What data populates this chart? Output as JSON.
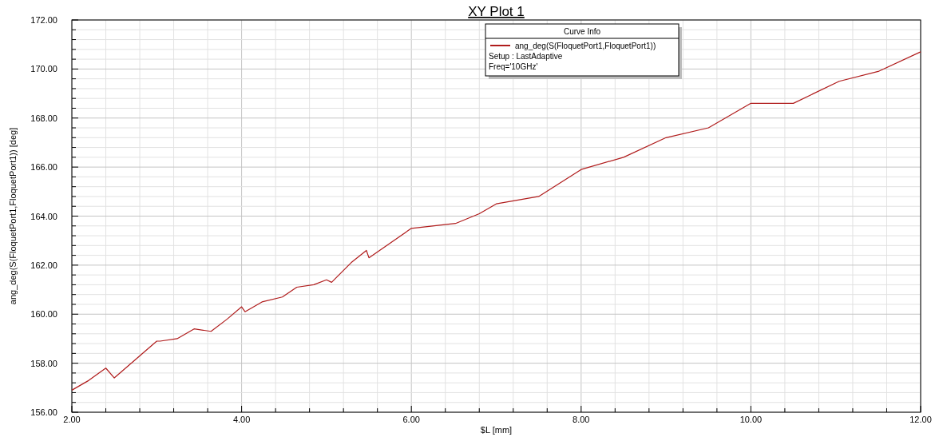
{
  "chart_data": {
    "type": "line",
    "title": "XY Plot 1",
    "xlabel": "$L [mm]",
    "ylabel": "ang_deg(S(FloquetPort1,FloquetPort1)) [deg]",
    "legend_title": "Curve Info",
    "annotations": [
      "Setup : LastAdaptive",
      "Freq='10GHz'"
    ],
    "x": [
      2,
      2.2,
      2.4,
      2.5,
      3.0,
      3.04,
      3.24,
      3.44,
      3.64,
      3.83,
      4.0,
      4.04,
      4.24,
      4.48,
      4.65,
      4.85,
      5.0,
      5.06,
      5.29,
      5.47,
      5.5,
      6.0,
      6.52,
      6.8,
      7.0,
      7.5,
      8.0,
      8.5,
      9.0,
      9.5,
      10.0,
      10.5,
      11.04,
      11.5,
      12
    ],
    "series": [
      {
        "name": "ang_deg(S(FloquetPort1,FloquetPort1))",
        "color": "#b01c1c",
        "values": [
          156.9,
          157.3,
          157.8,
          157.4,
          158.9,
          158.9,
          159.0,
          159.4,
          159.3,
          159.8,
          160.3,
          160.1,
          160.5,
          160.7,
          161.1,
          161.2,
          161.4,
          161.3,
          162.1,
          162.6,
          162.3,
          163.5,
          163.7,
          164.1,
          164.5,
          164.8,
          165.9,
          166.4,
          167.2,
          167.6,
          168.6,
          168.6,
          169.5,
          169.9,
          170.7
        ]
      }
    ],
    "xlim": [
      2,
      12
    ],
    "ylim": [
      156,
      172
    ],
    "xticks": [
      {
        "value": 2,
        "label": "2.00"
      },
      {
        "value": 2.4,
        "label": null
      },
      {
        "value": 2.8,
        "label": null
      },
      {
        "value": 3.2,
        "label": null
      },
      {
        "value": 3.6,
        "label": null
      },
      {
        "value": 4,
        "label": "4.00"
      },
      {
        "value": 4.4,
        "label": null
      },
      {
        "value": 4.8,
        "label": null
      },
      {
        "value": 5.2,
        "label": null
      },
      {
        "value": 5.6,
        "label": null
      },
      {
        "value": 6,
        "label": "6.00"
      },
      {
        "value": 6.4,
        "label": null
      },
      {
        "value": 6.8,
        "label": null
      },
      {
        "value": 7.2,
        "label": null
      },
      {
        "value": 7.6,
        "label": null
      },
      {
        "value": 8,
        "label": "8.00"
      },
      {
        "value": 8.4,
        "label": null
      },
      {
        "value": 8.8,
        "label": null
      },
      {
        "value": 9.2,
        "label": null
      },
      {
        "value": 9.6,
        "label": null
      },
      {
        "value": 10,
        "label": "10.00"
      },
      {
        "value": 10.4,
        "label": null
      },
      {
        "value": 10.8,
        "label": null
      },
      {
        "value": 11.2,
        "label": null
      },
      {
        "value": 11.6,
        "label": null
      },
      {
        "value": 12,
        "label": "12.00"
      }
    ],
    "yticks": [
      {
        "value": 156,
        "label": "156.00"
      },
      {
        "value": 156.4,
        "label": null
      },
      {
        "value": 156.8,
        "label": null
      },
      {
        "value": 157.2,
        "label": null
      },
      {
        "value": 157.6,
        "label": null
      },
      {
        "value": 158,
        "label": "158.00"
      },
      {
        "value": 158.4,
        "label": null
      },
      {
        "value": 158.8,
        "label": null
      },
      {
        "value": 159.2,
        "label": null
      },
      {
        "value": 159.6,
        "label": null
      },
      {
        "value": 160,
        "label": "160.00"
      },
      {
        "value": 160.4,
        "label": null
      },
      {
        "value": 160.8,
        "label": null
      },
      {
        "value": 161.2,
        "label": null
      },
      {
        "value": 161.6,
        "label": null
      },
      {
        "value": 162,
        "label": "162.00"
      },
      {
        "value": 162.4,
        "label": null
      },
      {
        "value": 162.8,
        "label": null
      },
      {
        "value": 163.2,
        "label": null
      },
      {
        "value": 163.6,
        "label": null
      },
      {
        "value": 164,
        "label": "164.00"
      },
      {
        "value": 164.4,
        "label": null
      },
      {
        "value": 164.8,
        "label": null
      },
      {
        "value": 165.2,
        "label": null
      },
      {
        "value": 165.6,
        "label": null
      },
      {
        "value": 166,
        "label": "166.00"
      },
      {
        "value": 166.4,
        "label": null
      },
      {
        "value": 166.8,
        "label": null
      },
      {
        "value": 167.2,
        "label": null
      },
      {
        "value": 167.6,
        "label": null
      },
      {
        "value": 168,
        "label": "168.00"
      },
      {
        "value": 168.4,
        "label": null
      },
      {
        "value": 168.8,
        "label": null
      },
      {
        "value": 169.2,
        "label": null
      },
      {
        "value": 169.6,
        "label": null
      },
      {
        "value": 170,
        "label": "170.00"
      },
      {
        "value": 170.4,
        "label": null
      },
      {
        "value": 170.8,
        "label": null
      },
      {
        "value": 171.2,
        "label": null
      },
      {
        "value": 171.6,
        "label": null
      },
      {
        "value": 172,
        "label": "172.00"
      }
    ],
    "grid": true,
    "legend": "top right",
    "marker": "none",
    "line_style": "solid"
  }
}
